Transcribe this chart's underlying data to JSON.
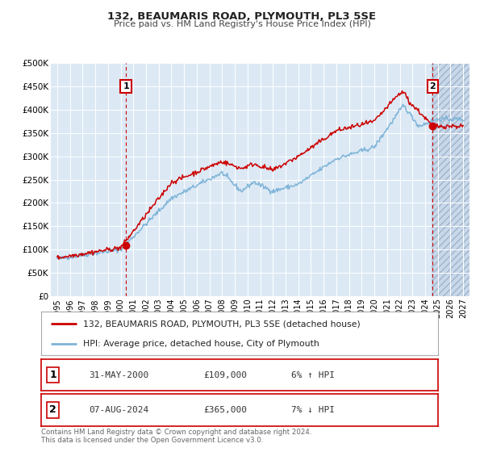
{
  "title": "132, BEAUMARIS ROAD, PLYMOUTH, PL3 5SE",
  "subtitle": "Price paid vs. HM Land Registry's House Price Index (HPI)",
  "background_color": "#ffffff",
  "plot_bg_color": "#dce9f5",
  "grid_color": "#ffffff",
  "red_line_label": "132, BEAUMARIS ROAD, PLYMOUTH, PL3 5SE (detached house)",
  "blue_line_label": "HPI: Average price, detached house, City of Plymouth",
  "red_color": "#cc0000",
  "blue_color": "#7fb4d8",
  "point1_date": "31-MAY-2000",
  "point1_price": "£109,000",
  "point1_hpi": "6% ↑ HPI",
  "point1_x": 2000.42,
  "point1_y": 109000,
  "point2_date": "07-AUG-2024",
  "point2_price": "£365,000",
  "point2_hpi": "7% ↓ HPI",
  "point2_x": 2024.6,
  "point2_y": 365000,
  "vline1_x": 2000.42,
  "vline2_x": 2024.6,
  "xlim": [
    1994.5,
    2027.5
  ],
  "ylim": [
    0,
    500000
  ],
  "yticks": [
    0,
    50000,
    100000,
    150000,
    200000,
    250000,
    300000,
    350000,
    400000,
    450000,
    500000
  ],
  "ytick_labels": [
    "£0",
    "£50K",
    "£100K",
    "£150K",
    "£200K",
    "£250K",
    "£300K",
    "£350K",
    "£400K",
    "£450K",
    "£500K"
  ],
  "xticks": [
    1995,
    1996,
    1997,
    1998,
    1999,
    2000,
    2001,
    2002,
    2003,
    2004,
    2005,
    2006,
    2007,
    2008,
    2009,
    2010,
    2011,
    2012,
    2013,
    2014,
    2015,
    2016,
    2017,
    2018,
    2019,
    2020,
    2021,
    2022,
    2023,
    2024,
    2025,
    2026,
    2027
  ],
  "footer": "Contains HM Land Registry data © Crown copyright and database right 2024.\nThis data is licensed under the Open Government Licence v3.0.",
  "hatch_color": "#c0c8d8"
}
